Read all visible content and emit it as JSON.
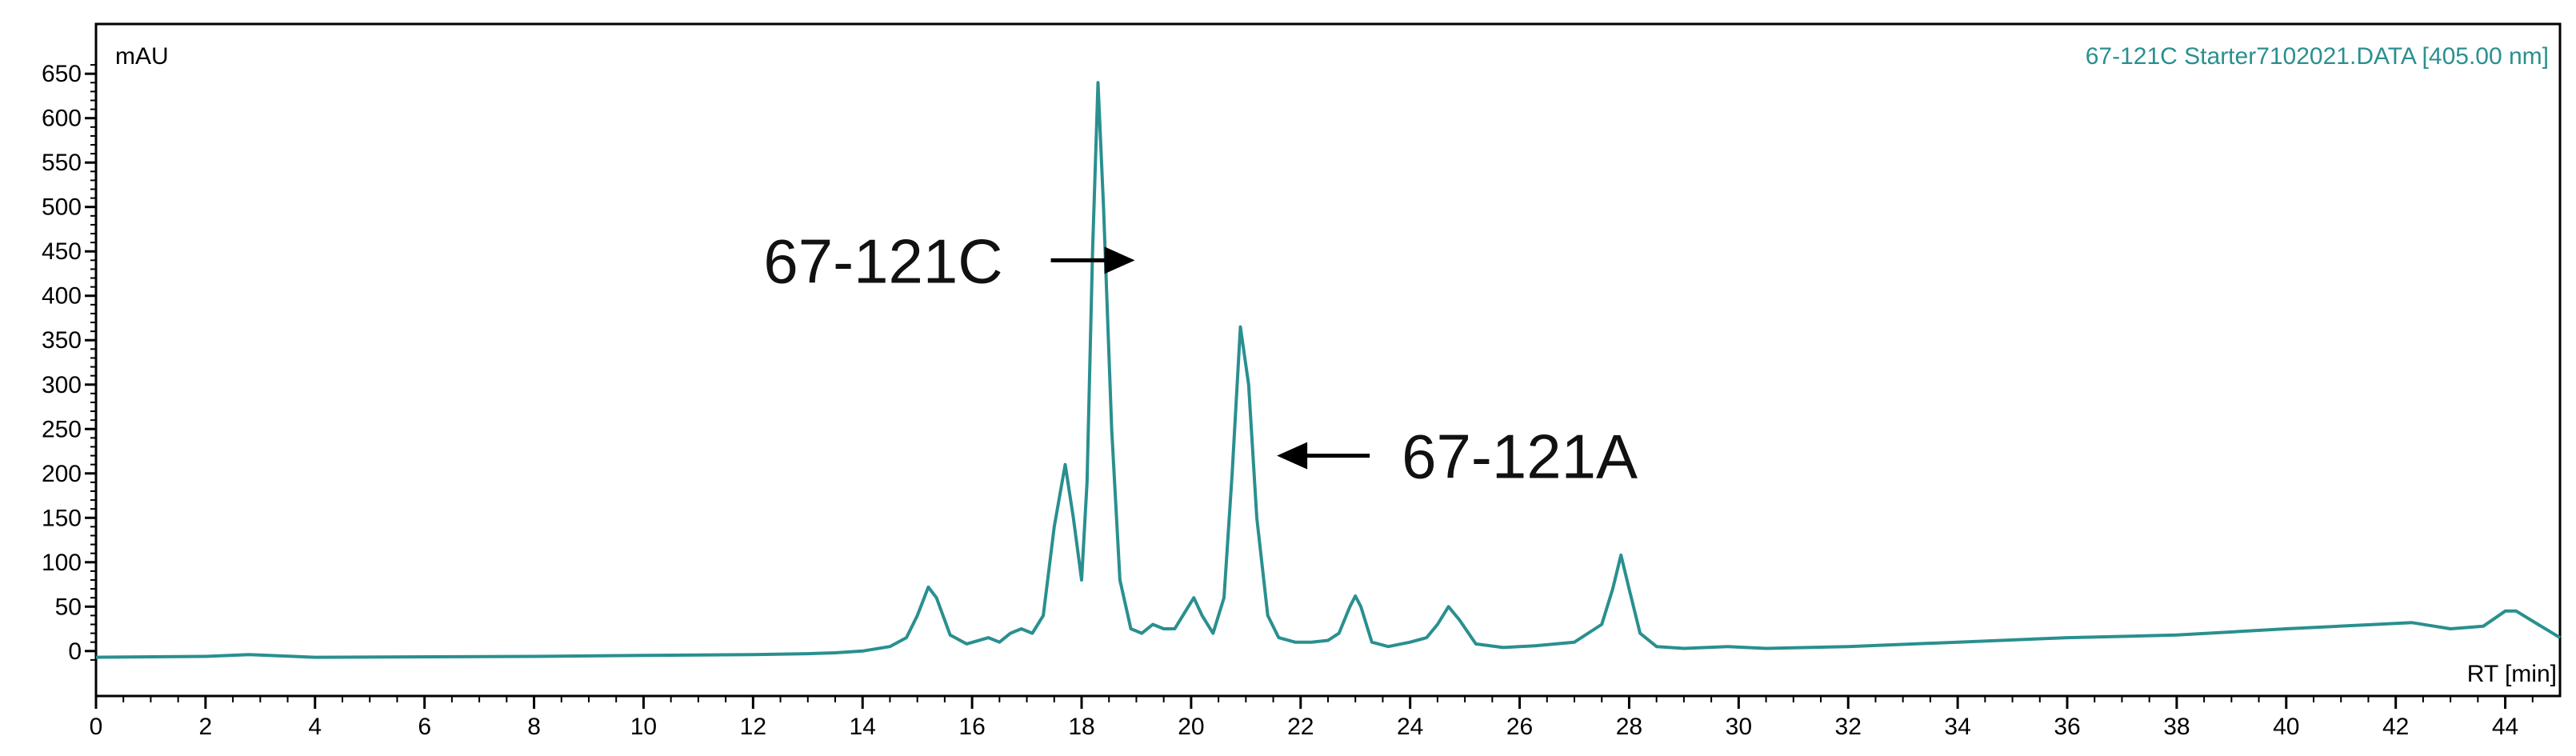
{
  "chart_data": {
    "type": "line",
    "title": "67-121C Starter7102021.DATA [405.00 nm]",
    "ylabel": "mAU",
    "xlabel": "RT [min]",
    "xlim": [
      0,
      45
    ],
    "ylim": [
      -20,
      670
    ],
    "x_ticks": [
      0,
      2,
      4,
      6,
      8,
      10,
      12,
      14,
      16,
      18,
      20,
      22,
      24,
      26,
      28,
      30,
      32,
      34,
      36,
      38,
      40,
      42,
      44
    ],
    "y_ticks": [
      0,
      50,
      100,
      150,
      200,
      250,
      300,
      350,
      400,
      450,
      500,
      550,
      600,
      650
    ],
    "series_color": "#2a8f8f",
    "series": [
      {
        "x": [
          0,
          2,
          2.8,
          4,
          8,
          10,
          12,
          13,
          13.5,
          14,
          14.5,
          14.8,
          15,
          15.2,
          15.35,
          15.6,
          15.9,
          16.3,
          16.5,
          16.7,
          16.9,
          17.1,
          17.3,
          17.5,
          17.7,
          17.85,
          18.0,
          18.1,
          18.2,
          18.3,
          18.4,
          18.55,
          18.7,
          18.9,
          19.1,
          19.3,
          19.5,
          19.7,
          19.9,
          20.05,
          20.2,
          20.4,
          20.6,
          20.75,
          20.9,
          21.05,
          21.2,
          21.4,
          21.6,
          21.9,
          22.2,
          22.5,
          22.7,
          22.9,
          23.0,
          23.1,
          23.3,
          23.6,
          24.0,
          24.3,
          24.5,
          24.7,
          24.9,
          25.2,
          25.7,
          26.3,
          27.0,
          27.5,
          27.7,
          27.85,
          28.0,
          28.2,
          28.5,
          29.0,
          29.8,
          30.5,
          32,
          34,
          36,
          38,
          40,
          42.3,
          43,
          43.6,
          44.0,
          44.2,
          44.6,
          45
        ],
        "y": [
          -7,
          -6,
          -4,
          -7,
          -6,
          -5,
          -4,
          -3,
          -2,
          0,
          5,
          15,
          40,
          72,
          60,
          18,
          8,
          15,
          10,
          20,
          25,
          20,
          40,
          140,
          210,
          150,
          80,
          190,
          450,
          640,
          500,
          250,
          80,
          25,
          20,
          30,
          25,
          25,
          45,
          60,
          40,
          20,
          60,
          200,
          365,
          300,
          150,
          40,
          15,
          10,
          10,
          12,
          20,
          50,
          62,
          50,
          10,
          5,
          10,
          15,
          30,
          50,
          35,
          8,
          4,
          6,
          10,
          30,
          70,
          108,
          70,
          20,
          5,
          3,
          5,
          3,
          5,
          10,
          15,
          18,
          25,
          32,
          25,
          28,
          45,
          45,
          30,
          15
        ]
      }
    ],
    "annotations": [
      {
        "text": "67-121C",
        "x": 17.0,
        "y": 440,
        "arrow": "right"
      },
      {
        "text": "67-121A",
        "x": 23.7,
        "y": 220,
        "arrow": "left"
      }
    ]
  }
}
